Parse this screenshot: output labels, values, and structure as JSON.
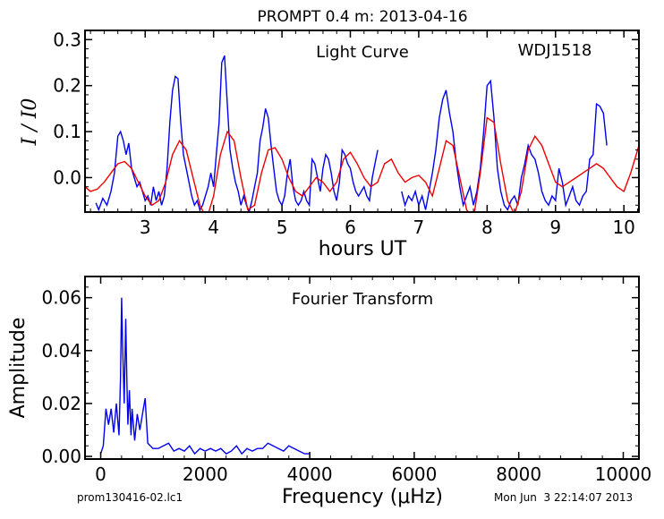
{
  "figure": {
    "title": "PROMPT 0.4 m:  2013-04-16",
    "footer_left": "prom130416-02.lc1",
    "footer_right": "Mon Jun  3 22:14:07 2013"
  },
  "chart_data": [
    {
      "type": "line",
      "panel": "light-curve",
      "title": "",
      "annotation_label": "Light Curve",
      "object_label": "WDJ1518",
      "xlabel": "hours UT",
      "ylabel": "I / I0",
      "xlim": [
        2.12,
        10.22
      ],
      "ylim": [
        -0.075,
        0.32
      ],
      "x_ticks": [
        3,
        4,
        5,
        6,
        7,
        8,
        9,
        10
      ],
      "x_tick_labels": [
        "3",
        "4",
        "5",
        "6",
        "7",
        "8",
        "9",
        "10"
      ],
      "y_ticks": [
        0.0,
        0.1,
        0.2,
        0.3
      ],
      "y_tick_labels": [
        "0.0",
        "0.1",
        "0.2",
        "0.3"
      ],
      "grid": false,
      "series": [
        {
          "color": "#0000ee",
          "x": [
            2.28,
            2.32,
            2.38,
            2.44,
            2.5,
            2.55,
            2.6,
            2.64,
            2.68,
            2.72,
            2.76,
            2.8,
            2.84,
            2.88,
            2.92,
            2.96,
            3.0,
            3.04,
            3.08,
            3.12,
            3.16,
            3.2,
            3.24,
            3.28,
            3.32,
            3.36,
            3.4,
            3.44,
            3.48,
            3.52,
            3.56,
            3.6,
            3.64,
            3.68,
            3.72,
            3.76,
            3.8,
            3.84,
            3.88,
            3.92,
            3.96,
            4.0,
            4.04,
            4.08,
            4.12,
            4.16,
            4.2,
            4.24,
            4.28,
            4.32,
            4.36,
            4.4,
            4.44,
            4.48,
            4.52,
            4.56,
            4.6,
            4.64,
            4.68,
            4.72,
            4.76,
            4.8,
            4.84,
            4.88,
            4.92,
            4.96,
            5.0,
            5.04,
            5.08,
            5.12,
            5.16,
            5.2,
            5.24,
            5.28,
            5.32,
            5.36,
            5.4,
            5.44,
            5.48,
            5.52,
            5.56,
            5.6,
            5.64,
            5.68,
            5.72,
            5.76,
            5.8,
            5.84,
            5.88,
            5.92,
            5.96,
            6.0,
            6.04,
            6.08,
            6.12,
            6.16,
            6.2,
            6.24,
            6.28,
            6.32,
            6.36,
            6.4
          ],
          "y": [
            -0.055,
            -0.07,
            -0.045,
            -0.06,
            -0.03,
            0.01,
            0.09,
            0.1,
            0.08,
            0.05,
            0.075,
            0.02,
            0.0,
            -0.02,
            -0.01,
            -0.03,
            -0.05,
            -0.04,
            -0.06,
            -0.02,
            -0.05,
            -0.03,
            -0.06,
            -0.04,
            0.02,
            0.12,
            0.19,
            0.22,
            0.215,
            0.12,
            0.05,
            0.02,
            -0.01,
            -0.04,
            -0.06,
            -0.05,
            -0.07,
            -0.06,
            -0.04,
            -0.02,
            0.01,
            -0.02,
            0.05,
            0.12,
            0.25,
            0.265,
            0.16,
            0.06,
            0.02,
            -0.01,
            -0.03,
            -0.06,
            -0.04,
            -0.06,
            -0.075,
            -0.05,
            -0.02,
            0.01,
            0.08,
            0.11,
            0.15,
            0.13,
            0.07,
            0.02,
            -0.03,
            -0.05,
            -0.06,
            -0.04,
            0.01,
            0.04,
            -0.02,
            -0.05,
            -0.06,
            -0.05,
            -0.03,
            -0.05,
            -0.06,
            0.04,
            0.03,
            0.0,
            -0.03,
            0.02,
            0.05,
            0.04,
            0.01,
            -0.03,
            -0.05,
            -0.01,
            0.06,
            0.05,
            0.03,
            0.02,
            -0.01,
            -0.03,
            -0.04,
            -0.03,
            -0.02,
            -0.04,
            -0.05,
            0.0,
            0.03,
            0.06
          ]
        },
        {
          "color": "#0000ee",
          "x": [
            6.75,
            6.8,
            6.85,
            6.9,
            6.95,
            7.0,
            7.05,
            7.1,
            7.15,
            7.2,
            7.25,
            7.3,
            7.35,
            7.4,
            7.45,
            7.5,
            7.55,
            7.6,
            7.65,
            7.7,
            7.75,
            7.8,
            7.85,
            7.9,
            7.95,
            8.0,
            8.05,
            8.1,
            8.15,
            8.2,
            8.25,
            8.3,
            8.35,
            8.4,
            8.45,
            8.5,
            8.55,
            8.6,
            8.65,
            8.7,
            8.75,
            8.8,
            8.85,
            8.9,
            8.95,
            9.0,
            9.05,
            9.1,
            9.15,
            9.2,
            9.25,
            9.3,
            9.35,
            9.4,
            9.45,
            9.5,
            9.55,
            9.6,
            9.65,
            9.7,
            9.75
          ],
          "y": [
            -0.03,
            -0.06,
            -0.04,
            -0.05,
            -0.03,
            -0.06,
            -0.04,
            -0.07,
            -0.03,
            0.01,
            0.06,
            0.13,
            0.17,
            0.19,
            0.14,
            0.1,
            0.03,
            -0.02,
            -0.06,
            -0.04,
            -0.02,
            -0.06,
            -0.03,
            0.02,
            0.1,
            0.2,
            0.21,
            0.13,
            0.02,
            -0.03,
            -0.06,
            -0.07,
            -0.05,
            -0.04,
            -0.06,
            0.0,
            0.03,
            0.07,
            0.05,
            0.04,
            0.01,
            -0.03,
            -0.05,
            -0.06,
            -0.04,
            -0.05,
            0.02,
            -0.01,
            -0.06,
            -0.04,
            -0.02,
            -0.05,
            -0.06,
            -0.04,
            -0.03,
            0.04,
            0.05,
            0.16,
            0.155,
            0.14,
            0.07
          ]
        },
        {
          "color": "#ee0000",
          "x": [
            2.12,
            2.2,
            2.3,
            2.4,
            2.5,
            2.6,
            2.7,
            2.8,
            2.9,
            3.0,
            3.1,
            3.2,
            3.3,
            3.4,
            3.5,
            3.6,
            3.7,
            3.8,
            3.9,
            4.0,
            4.1,
            4.2,
            4.3,
            4.4,
            4.5,
            4.6,
            4.7,
            4.8,
            4.9,
            5.0,
            5.1,
            5.2,
            5.3,
            5.4,
            5.5,
            5.6,
            5.7,
            5.8,
            5.9,
            6.0,
            6.1,
            6.2,
            6.3,
            6.4,
            6.5,
            6.6,
            6.7,
            6.8,
            6.9,
            7.0,
            7.1,
            7.2,
            7.3,
            7.4,
            7.5,
            7.6,
            7.7,
            7.8,
            7.9,
            8.0,
            8.1,
            8.2,
            8.3,
            8.4,
            8.5,
            8.6,
            8.7,
            8.8,
            8.9,
            9.0,
            9.1,
            9.2,
            9.3,
            9.4,
            9.5,
            9.6,
            9.7,
            9.8,
            9.9,
            10.0,
            10.1,
            10.22
          ],
          "y": [
            -0.02,
            -0.03,
            -0.025,
            -0.01,
            0.01,
            0.03,
            0.035,
            0.02,
            -0.01,
            -0.04,
            -0.06,
            -0.05,
            -0.01,
            0.05,
            0.08,
            0.06,
            0.0,
            -0.06,
            -0.09,
            -0.04,
            0.05,
            0.1,
            0.08,
            0.0,
            -0.07,
            -0.06,
            0.01,
            0.06,
            0.065,
            0.04,
            0.0,
            -0.03,
            -0.04,
            -0.02,
            0.0,
            -0.01,
            -0.03,
            -0.01,
            0.04,
            0.055,
            0.03,
            0.0,
            -0.02,
            -0.01,
            0.03,
            0.04,
            0.01,
            -0.01,
            0.0,
            0.005,
            -0.01,
            -0.04,
            0.02,
            0.08,
            0.07,
            0.0,
            -0.07,
            -0.09,
            0.01,
            0.13,
            0.12,
            0.03,
            -0.05,
            -0.08,
            -0.03,
            0.06,
            0.09,
            0.07,
            0.03,
            -0.01,
            -0.02,
            -0.01,
            0.0,
            0.01,
            0.02,
            0.03,
            0.02,
            0.0,
            -0.02,
            -0.03,
            0.01,
            0.07
          ]
        }
      ]
    },
    {
      "type": "line",
      "panel": "fourier-transform",
      "title": "",
      "annotation_label": "Fourier Transform",
      "xlabel": "Frequency (μHz)",
      "ylabel": "Amplitude",
      "xlim": [
        -300,
        10300
      ],
      "ylim": [
        -0.001,
        0.068
      ],
      "x_ticks": [
        0,
        2000,
        4000,
        6000,
        8000,
        10000
      ],
      "x_tick_labels": [
        "0",
        "2000",
        "4000",
        "6000",
        "8000",
        "10000"
      ],
      "y_ticks": [
        0.0,
        0.02,
        0.04,
        0.06
      ],
      "y_tick_labels": [
        "0.00",
        "0.02",
        "0.04",
        "0.06"
      ],
      "grid": false,
      "series": [
        {
          "color": "#0000ee",
          "x": [
            0,
            50,
            100,
            150,
            200,
            250,
            300,
            350,
            380,
            400,
            420,
            450,
            480,
            500,
            520,
            550,
            580,
            600,
            650,
            700,
            750,
            800,
            850,
            900,
            950,
            1000,
            1100,
            1200,
            1300,
            1400,
            1500,
            1600,
            1700,
            1800,
            1900,
            2000,
            2100,
            2200,
            2300,
            2400,
            2500,
            2600,
            2700,
            2800,
            2900,
            3000,
            3100,
            3200,
            3300,
            3400,
            3500,
            3600,
            3700,
            3800,
            3900,
            4000
          ],
          "y": [
            0.001,
            0.004,
            0.018,
            0.012,
            0.018,
            0.009,
            0.02,
            0.008,
            0.03,
            0.06,
            0.042,
            0.02,
            0.052,
            0.03,
            0.012,
            0.025,
            0.008,
            0.018,
            0.006,
            0.016,
            0.01,
            0.016,
            0.022,
            0.005,
            0.004,
            0.003,
            0.003,
            0.004,
            0.005,
            0.002,
            0.003,
            0.002,
            0.004,
            0.001,
            0.003,
            0.002,
            0.003,
            0.002,
            0.003,
            0.001,
            0.002,
            0.004,
            0.001,
            0.003,
            0.002,
            0.003,
            0.003,
            0.005,
            0.004,
            0.003,
            0.002,
            0.004,
            0.003,
            0.002,
            0.001,
            0.001
          ]
        }
      ]
    }
  ]
}
